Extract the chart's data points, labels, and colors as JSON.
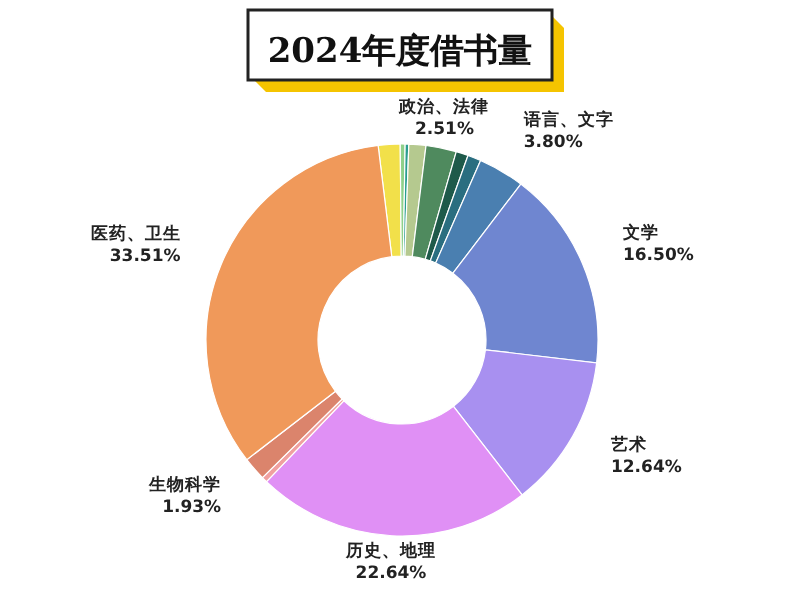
{
  "chart_data": {
    "type": "donut",
    "title": "2024年度借书量",
    "categories": [
      null,
      null,
      null,
      null,
      "政治、法律",
      null,
      null,
      "语言、文字",
      "文学",
      "艺术",
      "历史、地理",
      null,
      "生物科学",
      "医药、卫生"
    ],
    "values": [
      1.8,
      0.4,
      0.3,
      1.4,
      2.51,
      1.0,
      1.1,
      3.8,
      16.5,
      12.64,
      22.64,
      0.47,
      1.93,
      33.51
    ],
    "value_labels": [
      null,
      null,
      null,
      null,
      "2.51%",
      null,
      null,
      "3.80%",
      "16.50%",
      "12.64%",
      "22.64%",
      null,
      "1.93%",
      "33.51%"
    ],
    "colors": [
      "#f2e04a",
      "#8fd08a",
      "#2a9d8f",
      "#b5c98f",
      "#4f8a5e",
      "#1e5a4a",
      "#2a6e80",
      "#4a7fb0",
      "#6f86d0",
      "#a890f0",
      "#e090f5",
      "#f0a0a0",
      "#db846c",
      "#f0995a"
    ]
  }
}
